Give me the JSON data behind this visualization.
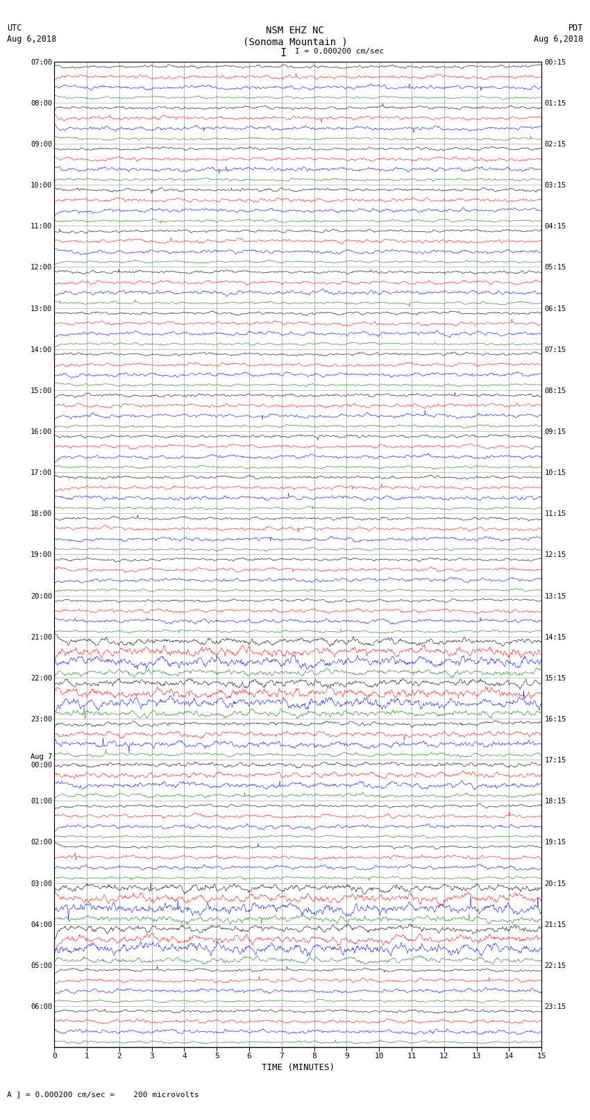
{
  "title_line1": "NSM EHZ NC",
  "title_line2": "(Sonoma Mountain )",
  "title_line3": "I = 0.000200 cm/sec",
  "left_header_line1": "UTC",
  "left_header_line2": "Aug 6,2018",
  "right_header_line1": "PDT",
  "right_header_line2": "Aug 6,2018",
  "xlabel": "TIME (MINUTES)",
  "footer_text": "A ] = 0.000200 cm/sec =    200 microvolts",
  "utc_labels": [
    "07:00",
    "08:00",
    "09:00",
    "10:00",
    "11:00",
    "12:00",
    "13:00",
    "14:00",
    "15:00",
    "16:00",
    "17:00",
    "18:00",
    "19:00",
    "20:00",
    "21:00",
    "22:00",
    "23:00",
    "Aug 7\n00:00",
    "01:00",
    "02:00",
    "03:00",
    "04:00",
    "05:00",
    "06:00"
  ],
  "pdt_labels": [
    "00:15",
    "01:15",
    "02:15",
    "03:15",
    "04:15",
    "05:15",
    "06:15",
    "07:15",
    "08:15",
    "09:15",
    "10:15",
    "11:15",
    "12:15",
    "13:15",
    "14:15",
    "15:15",
    "16:15",
    "17:15",
    "18:15",
    "19:15",
    "20:15",
    "21:15",
    "22:15",
    "23:15"
  ],
  "trace_colors": [
    "black",
    "red",
    "blue",
    "green"
  ],
  "num_hours": 24,
  "traces_per_hour": 4,
  "minutes": 15,
  "samples_per_trace": 900,
  "bg_color": "white",
  "plot_bg": "white",
  "grid_color": "#999999",
  "noise_amp_black": 0.018,
  "noise_amp_red": 0.022,
  "noise_amp_blue": 0.025,
  "noise_amp_green": 0.015,
  "xticks": [
    0,
    1,
    2,
    3,
    4,
    5,
    6,
    7,
    8,
    9,
    10,
    11,
    12,
    13,
    14,
    15
  ]
}
